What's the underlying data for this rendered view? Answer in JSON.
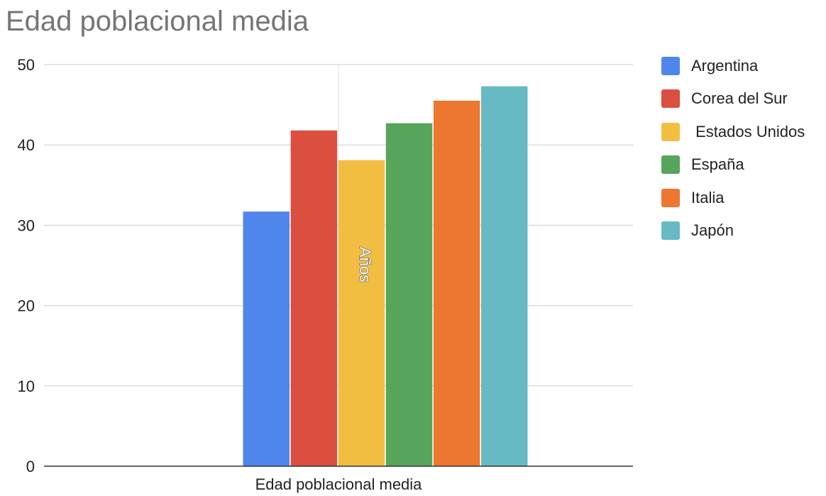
{
  "title": "Edad poblacional media",
  "chart_data": {
    "type": "bar",
    "title": "Edad poblacional media",
    "categories": [
      "Edad poblacional media"
    ],
    "series": [
      {
        "name": "Argentina",
        "values": [
          31.7
        ],
        "color": "#4F86EC"
      },
      {
        "name": "Corea del Sur",
        "values": [
          41.8
        ],
        "color": "#DB4F3F"
      },
      {
        "name": " Estados Unidos",
        "values": [
          38.1
        ],
        "color": "#F2BE42"
      },
      {
        "name": "España",
        "values": [
          42.7
        ],
        "color": "#57A55A"
      },
      {
        "name": "Italia",
        "values": [
          45.5
        ],
        "color": "#ED7630"
      },
      {
        "name": "Japón",
        "values": [
          47.3
        ],
        "color": "#67BAC4"
      }
    ],
    "ylim": [
      0,
      50
    ],
    "yticks": [
      0,
      10,
      20,
      30,
      40,
      50
    ],
    "xlabel": "",
    "ylabel": "",
    "annotation": "Años",
    "grid": true,
    "legend": "right"
  }
}
